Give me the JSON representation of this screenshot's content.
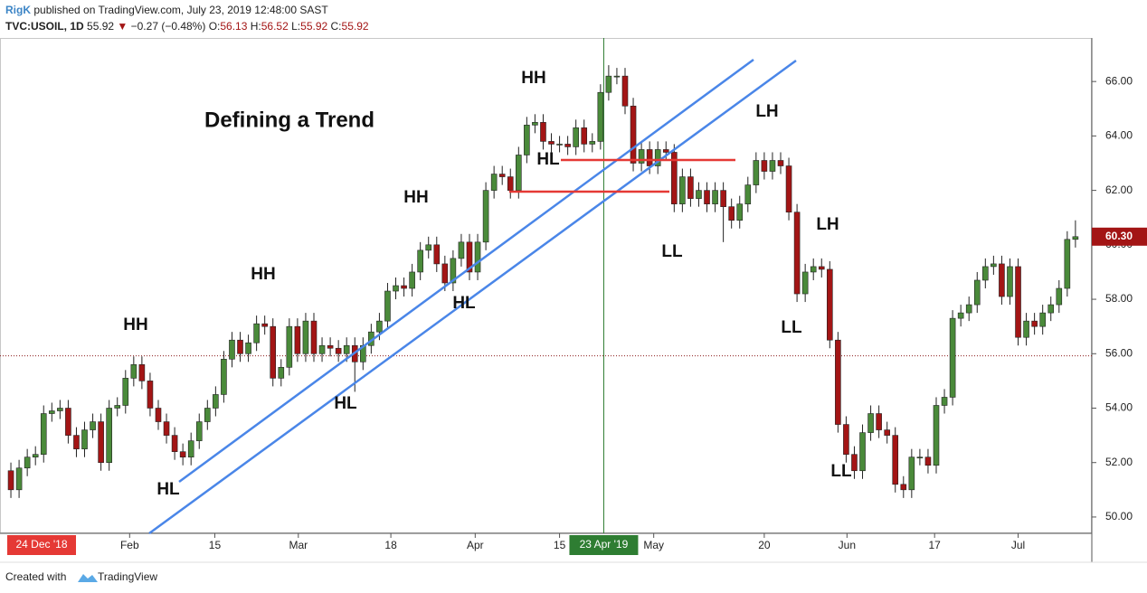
{
  "header": {
    "author": "RigK",
    "published": "published on TradingView.com, July 23, 2019 12:48:00 SAST",
    "symbol": "TVC:USOIL, 1D",
    "last": "55.92",
    "arrow": "▼",
    "change": "−0.27 (−0.48%)",
    "ohlc": [
      {
        "label": "O:",
        "value": "56.13"
      },
      {
        "label": "H:",
        "value": "56.52"
      },
      {
        "label": "L:",
        "value": "55.92"
      },
      {
        "label": "C:",
        "value": "55.92"
      }
    ]
  },
  "footer": {
    "created": "Created with",
    "brand": "TradingView"
  },
  "chart_data": {
    "type": "candlestick",
    "up_color": "#4a8a3a",
    "down_color": "#a31515",
    "open": [
      51.7,
      51.0,
      51.8,
      52.2,
      52.3,
      53.8,
      53.9,
      54.0,
      53.0,
      52.5,
      53.2,
      53.5,
      52.0,
      54.0,
      54.1,
      55.1,
      55.6,
      55.0,
      54.0,
      53.5,
      53.0,
      52.4,
      52.2,
      52.8,
      53.5,
      54.0,
      54.5,
      55.8,
      56.5,
      56.0,
      56.4,
      57.1,
      57.0,
      55.1,
      55.5,
      57.0,
      56.0,
      57.2,
      56.0,
      56.3,
      56.2,
      56.0,
      56.3,
      55.7,
      56.3,
      56.8,
      57.2,
      58.3,
      58.5,
      58.4,
      59.0,
      59.8,
      60.0,
      59.3,
      58.6,
      59.5,
      60.1,
      59.0,
      60.1,
      62.0,
      62.6,
      62.5,
      62.0,
      63.3,
      64.4,
      64.5,
      63.8,
      63.7,
      63.7,
      63.6,
      64.3,
      63.7,
      63.8,
      65.6,
      66.2,
      66.2,
      65.1,
      63.0,
      63.5,
      62.9,
      63.5,
      63.4,
      61.5,
      62.5,
      61.7,
      62.0,
      61.5,
      62.0,
      61.4,
      60.9,
      61.5,
      62.2,
      63.1,
      62.7,
      63.1,
      62.9,
      61.2,
      58.2,
      59.0,
      59.2,
      59.1,
      56.5,
      53.4,
      52.3,
      51.7,
      53.1,
      53.8,
      53.2,
      53.0,
      51.2,
      51.0,
      52.2,
      52.2,
      51.9,
      54.1,
      54.4,
      57.3,
      57.5,
      57.8,
      58.7,
      59.2,
      59.3,
      58.1,
      59.2,
      56.6,
      57.2,
      57.0,
      57.5,
      57.8,
      58.4,
      60.2
    ],
    "high": [
      52.0,
      52.1,
      52.5,
      52.6,
      54.1,
      54.2,
      54.3,
      54.3,
      53.3,
      53.5,
      53.8,
      53.8,
      54.3,
      54.4,
      55.4,
      55.9,
      55.9,
      55.3,
      54.3,
      53.8,
      53.3,
      52.7,
      53.1,
      53.8,
      54.3,
      54.8,
      56.1,
      56.8,
      56.8,
      56.7,
      57.4,
      57.4,
      57.3,
      55.8,
      57.3,
      57.3,
      57.5,
      57.5,
      56.6,
      56.6,
      56.5,
      56.6,
      56.6,
      56.6,
      57.1,
      57.5,
      58.6,
      58.8,
      58.8,
      59.3,
      60.1,
      60.3,
      60.3,
      59.6,
      59.8,
      60.4,
      60.4,
      60.4,
      62.3,
      62.9,
      62.9,
      62.8,
      63.6,
      64.7,
      64.8,
      64.8,
      64.1,
      64.0,
      64.0,
      64.6,
      64.6,
      64.1,
      65.9,
      66.6,
      66.5,
      66.5,
      65.4,
      63.8,
      63.8,
      63.8,
      63.8,
      63.7,
      62.8,
      62.8,
      62.3,
      62.3,
      62.3,
      62.3,
      61.7,
      61.8,
      62.5,
      63.4,
      63.4,
      63.4,
      63.4,
      63.2,
      61.5,
      59.3,
      59.5,
      59.5,
      59.4,
      56.8,
      53.7,
      52.6,
      53.4,
      54.1,
      54.1,
      53.5,
      53.3,
      51.5,
      52.5,
      52.5,
      52.5,
      54.4,
      54.7,
      57.6,
      57.8,
      58.1,
      59.0,
      59.5,
      59.6,
      59.6,
      59.5,
      59.5,
      57.5,
      57.5,
      57.8,
      58.1,
      58.7,
      60.5,
      60.9
    ],
    "low": [
      50.7,
      50.7,
      51.5,
      51.9,
      52.0,
      53.5,
      53.6,
      52.7,
      52.2,
      52.2,
      52.9,
      51.7,
      51.7,
      53.7,
      53.8,
      54.8,
      54.7,
      53.7,
      53.2,
      52.7,
      52.1,
      51.9,
      51.9,
      52.5,
      53.2,
      53.7,
      54.2,
      55.5,
      55.7,
      55.7,
      56.1,
      56.7,
      54.8,
      54.8,
      55.2,
      55.7,
      55.7,
      55.7,
      55.7,
      55.9,
      55.7,
      55.7,
      54.6,
      55.4,
      56.0,
      56.5,
      56.9,
      58.0,
      58.1,
      58.1,
      58.7,
      59.5,
      59.0,
      58.3,
      58.3,
      59.2,
      58.7,
      58.7,
      59.8,
      61.7,
      62.2,
      61.7,
      61.7,
      63.0,
      64.1,
      63.5,
      63.4,
      63.4,
      63.3,
      63.3,
      63.4,
      63.4,
      63.5,
      65.3,
      65.9,
      64.8,
      62.7,
      62.7,
      62.6,
      62.6,
      63.1,
      61.2,
      61.2,
      61.4,
      61.4,
      61.2,
      61.2,
      60.1,
      60.6,
      60.6,
      61.2,
      61.9,
      62.4,
      62.4,
      62.6,
      60.9,
      57.9,
      57.9,
      58.7,
      58.8,
      56.2,
      53.1,
      52.0,
      51.4,
      51.4,
      52.8,
      52.9,
      52.7,
      50.9,
      50.7,
      50.7,
      51.9,
      51.6,
      51.6,
      53.8,
      54.1,
      57.0,
      57.2,
      57.5,
      58.4,
      58.9,
      57.8,
      57.8,
      56.3,
      56.3,
      56.7,
      56.7,
      57.2,
      57.5,
      58.1,
      59.9
    ],
    "close": [
      51.0,
      51.8,
      52.2,
      52.3,
      53.8,
      53.9,
      54.0,
      53.0,
      52.5,
      53.2,
      53.5,
      52.0,
      54.0,
      54.1,
      55.1,
      55.6,
      55.0,
      54.0,
      53.5,
      53.0,
      52.4,
      52.2,
      52.8,
      53.5,
      54.0,
      54.5,
      55.8,
      56.5,
      56.0,
      56.4,
      57.1,
      57.0,
      55.1,
      55.5,
      57.0,
      56.0,
      57.2,
      56.0,
      56.3,
      56.2,
      56.0,
      56.3,
      55.7,
      56.3,
      56.8,
      57.2,
      58.3,
      58.5,
      58.4,
      59.0,
      59.8,
      60.0,
      59.3,
      58.6,
      59.5,
      60.1,
      59.0,
      60.1,
      62.0,
      62.6,
      62.5,
      62.0,
      63.3,
      64.4,
      64.5,
      63.8,
      63.7,
      63.7,
      63.6,
      64.3,
      63.7,
      63.8,
      65.6,
      66.2,
      66.2,
      65.1,
      63.0,
      63.5,
      62.9,
      63.5,
      63.4,
      61.5,
      62.5,
      61.7,
      62.0,
      61.5,
      62.0,
      61.4,
      60.9,
      61.5,
      62.2,
      63.1,
      62.7,
      63.1,
      62.9,
      61.2,
      58.2,
      59.0,
      59.2,
      59.1,
      56.5,
      53.4,
      52.3,
      51.7,
      53.1,
      53.8,
      53.2,
      53.0,
      51.2,
      51.0,
      52.2,
      52.2,
      51.9,
      54.1,
      54.4,
      57.3,
      57.5,
      57.8,
      58.7,
      59.2,
      59.3,
      58.1,
      59.2,
      56.6,
      57.2,
      57.0,
      57.5,
      57.8,
      58.4,
      60.2,
      60.3
    ],
    "ylim": [
      49.4,
      67.6
    ],
    "yticks": [
      {
        "value": 50,
        "label": "50.00"
      },
      {
        "value": 52,
        "label": "52.00"
      },
      {
        "value": 54,
        "label": "54.00"
      },
      {
        "value": 56,
        "label": "56.00"
      },
      {
        "value": 58,
        "label": "58.00"
      },
      {
        "value": 60,
        "label": "60.00"
      },
      {
        "value": 62,
        "label": "62.00"
      },
      {
        "value": 64,
        "label": "64.00"
      },
      {
        "value": 66,
        "label": "66.00"
      }
    ],
    "xlim": [
      -1.33,
      132.0
    ],
    "xticks": [
      {
        "value": 14.5,
        "label": "Feb"
      },
      {
        "value": 24.9,
        "label": "15"
      },
      {
        "value": 35.1,
        "label": "Mar"
      },
      {
        "value": 46.4,
        "label": "18"
      },
      {
        "value": 56.7,
        "label": "Apr"
      },
      {
        "value": 67.0,
        "label": "15"
      },
      {
        "value": 78.5,
        "label": "May"
      },
      {
        "value": 92.0,
        "label": "20"
      },
      {
        "value": 102.1,
        "label": "Jun"
      },
      {
        "value": 112.8,
        "label": "17"
      },
      {
        "value": 123.0,
        "label": "Jul"
      }
    ],
    "start_marker": {
      "value": 0,
      "label": "24 Dec '18"
    },
    "crosshair": {
      "value": 72.4,
      "label": "23 Apr '19"
    },
    "last_price": {
      "value": 60.3,
      "label": "60.30"
    },
    "price_line": 55.92,
    "annotations": [
      "Defining a Trend",
      "HH",
      "HH",
      "HH",
      "HH",
      "LH",
      "LH",
      "HL",
      "HL",
      "HL",
      "HL",
      "LL",
      "LL",
      "LL"
    ]
  }
}
